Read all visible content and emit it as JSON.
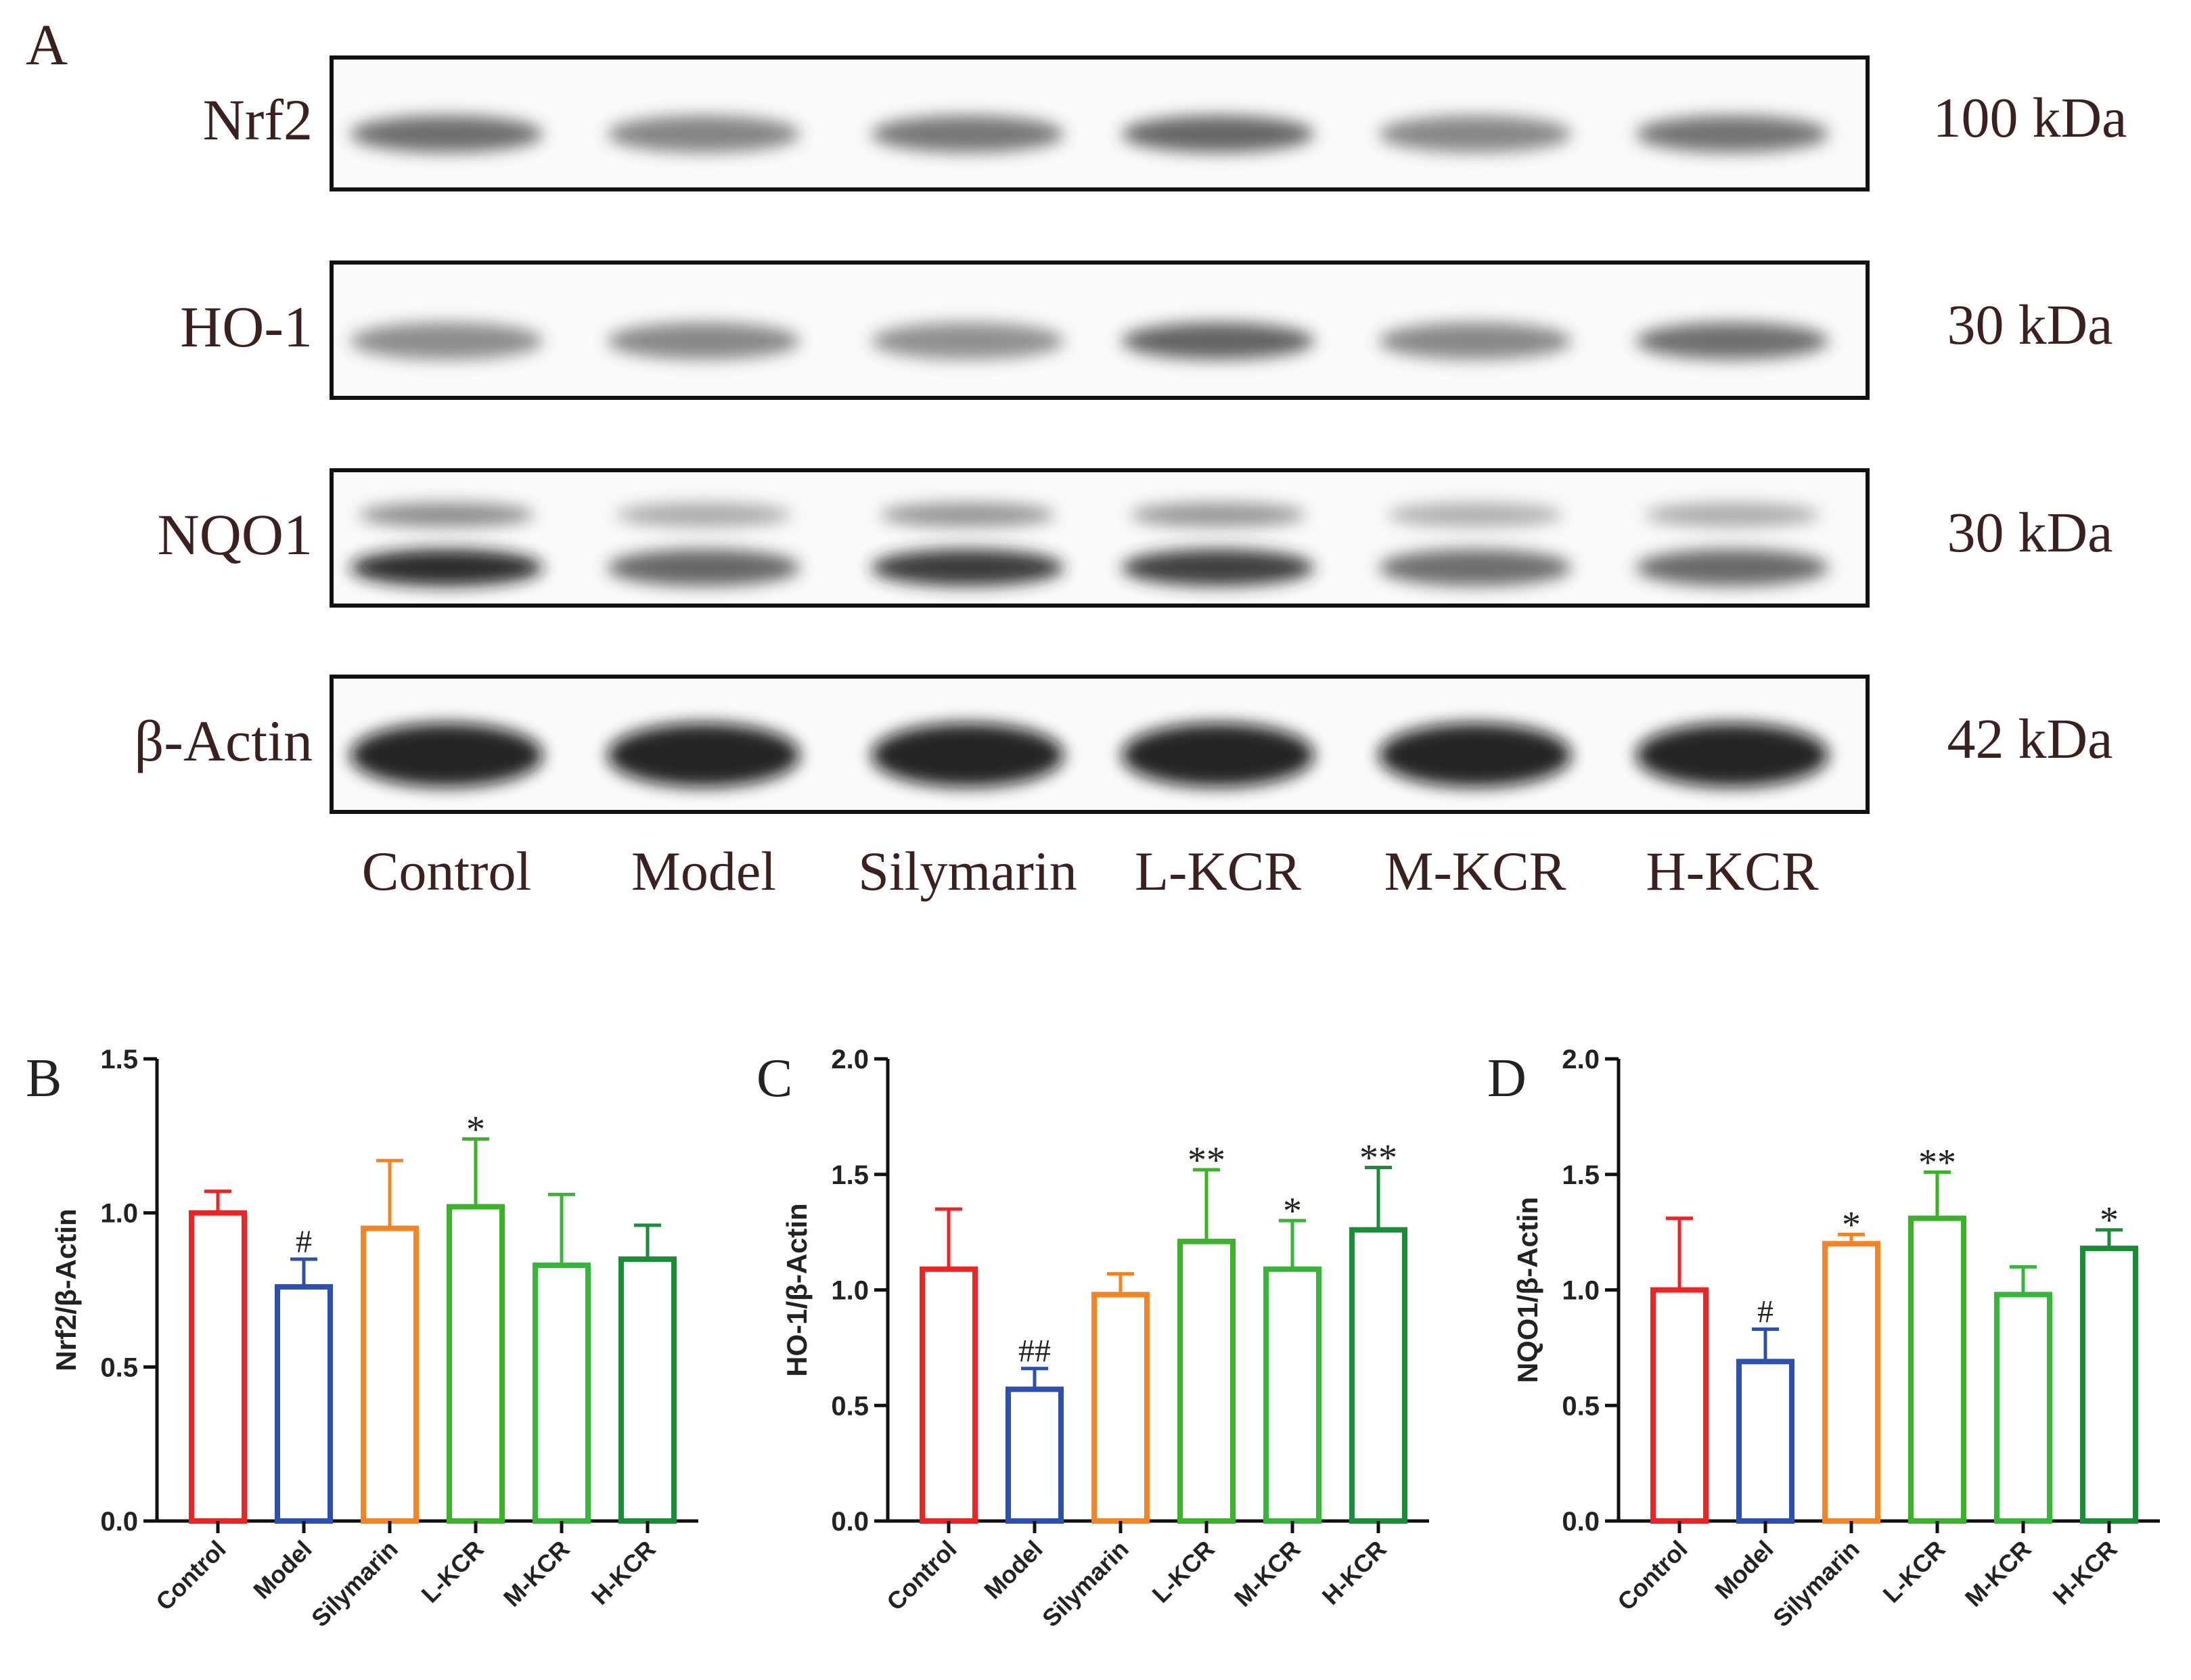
{
  "panel_letters": {
    "a": "A",
    "b": "B",
    "c": "C",
    "d": "D"
  },
  "blot": {
    "lanes": [
      "Control",
      "Model",
      "Silymarin",
      "L-KCR",
      "M-KCR",
      "H-KCR"
    ],
    "rows": [
      {
        "protein": "Nrf2",
        "mw": "100 kDa",
        "intensity": [
          0.55,
          0.42,
          0.5,
          0.6,
          0.4,
          0.52
        ]
      },
      {
        "protein": "HO-1",
        "mw": "30 kDa",
        "intensity": [
          0.38,
          0.4,
          0.36,
          0.62,
          0.4,
          0.55
        ]
      },
      {
        "protein": "NQO1",
        "mw": "30 kDa",
        "intensity": [
          0.95,
          0.6,
          0.85,
          0.82,
          0.55,
          0.58
        ]
      },
      {
        "protein": "β-Actin",
        "mw": "42 kDa",
        "intensity": [
          1.0,
          0.98,
          0.98,
          0.98,
          0.98,
          1.0
        ]
      }
    ]
  },
  "colors": [
    "#ee2424",
    "#2c4fb0",
    "#f68426",
    "#3cb22a",
    "#36b53a",
    "#1a8c3a"
  ],
  "chart_data": [
    {
      "type": "bar",
      "panel": "B",
      "categories": [
        "Control",
        "Model",
        "Silymarin",
        "L-KCR",
        "M-KCR",
        "H-KCR"
      ],
      "values": [
        1.0,
        0.76,
        0.95,
        1.02,
        0.83,
        0.85
      ],
      "errors": [
        0.07,
        0.09,
        0.22,
        0.22,
        0.23,
        0.11
      ],
      "annotations": [
        "",
        "#",
        "",
        "*",
        "",
        ""
      ],
      "ylabel": "Nrf2/β-Actin",
      "ylim": [
        0,
        1.5
      ],
      "yticks": [
        "0.0",
        "0.5",
        "1.0",
        "1.5"
      ]
    },
    {
      "type": "bar",
      "panel": "C",
      "categories": [
        "Control",
        "Model",
        "Silymarin",
        "L-KCR",
        "M-KCR",
        "H-KCR"
      ],
      "values": [
        1.09,
        0.57,
        0.98,
        1.21,
        1.09,
        1.26
      ],
      "errors": [
        0.26,
        0.09,
        0.09,
        0.31,
        0.21,
        0.27
      ],
      "annotations": [
        "",
        "##",
        "",
        "**",
        "*",
        "**"
      ],
      "ylabel": "HO-1/β-Actin",
      "ylim": [
        0,
        2.0
      ],
      "yticks": [
        "0.0",
        "0.5",
        "1.0",
        "1.5",
        "2.0"
      ]
    },
    {
      "type": "bar",
      "panel": "D",
      "categories": [
        "Control",
        "Model",
        "Silymarin",
        "L-KCR",
        "M-KCR",
        "H-KCR"
      ],
      "values": [
        1.0,
        0.69,
        1.2,
        1.31,
        0.98,
        1.18
      ],
      "errors": [
        0.31,
        0.14,
        0.04,
        0.2,
        0.12,
        0.08
      ],
      "annotations": [
        "",
        "#",
        "*",
        "**",
        "",
        "*"
      ],
      "ylabel": "NQO1/β-Actin",
      "ylim": [
        0,
        2.0
      ],
      "yticks": [
        "0.0",
        "0.5",
        "1.0",
        "1.5",
        "2.0"
      ]
    }
  ]
}
